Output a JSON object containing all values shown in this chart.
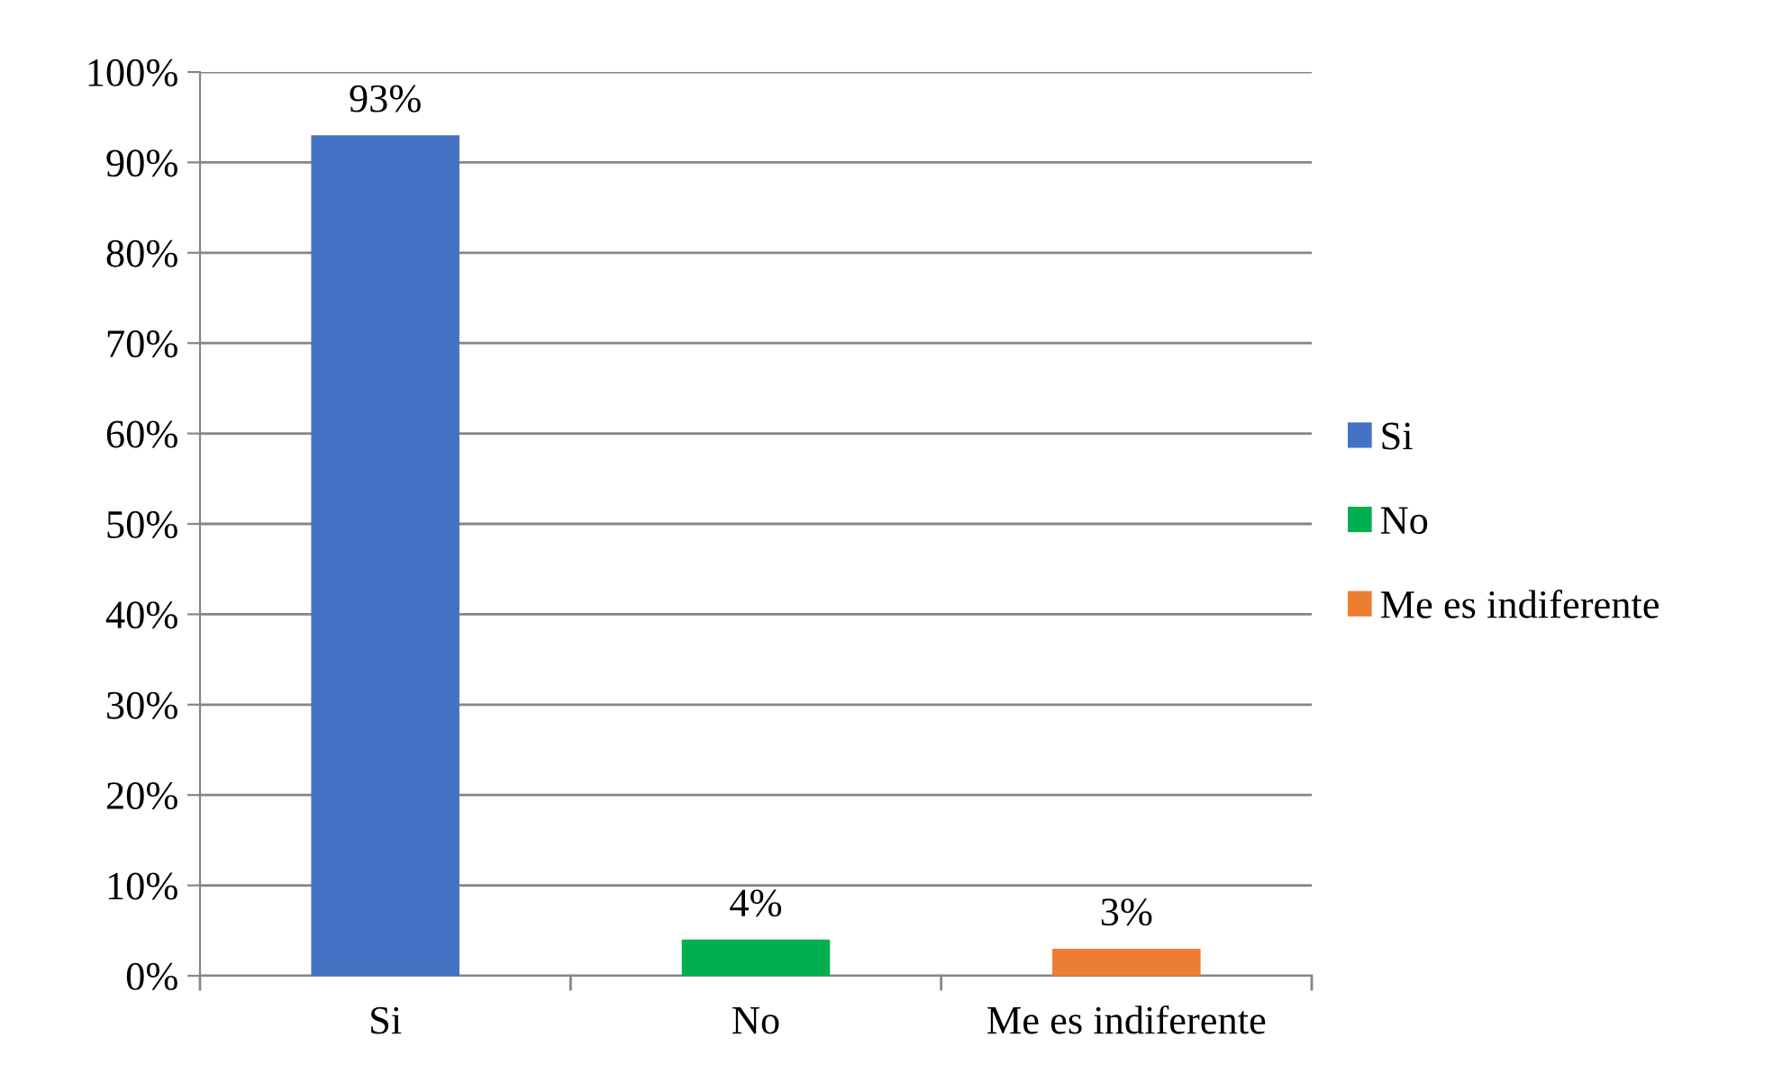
{
  "chart_data": {
    "type": "bar",
    "categories": [
      "Si",
      "No",
      "Me es indiferente"
    ],
    "series": [
      {
        "name": "Si",
        "color": "#4472c4",
        "values": [
          93,
          null,
          null
        ],
        "value_labels": [
          "93%",
          null,
          null
        ]
      },
      {
        "name": "No",
        "color": "#00b050",
        "values": [
          null,
          4,
          null
        ],
        "value_labels": [
          null,
          "4%",
          null
        ]
      },
      {
        "name": "Me es indiferente",
        "color": "#ed7d31",
        "values": [
          null,
          null,
          3
        ],
        "value_labels": [
          null,
          null,
          "3%"
        ]
      }
    ],
    "ylim": [
      0,
      100
    ],
    "yticks": [
      {
        "value": 0,
        "label": "0%"
      },
      {
        "value": 10,
        "label": "10%"
      },
      {
        "value": 20,
        "label": "20%"
      },
      {
        "value": 30,
        "label": "30%"
      },
      {
        "value": 40,
        "label": "40%"
      },
      {
        "value": 50,
        "label": "50%"
      },
      {
        "value": 60,
        "label": "60%"
      },
      {
        "value": 70,
        "label": "70%"
      },
      {
        "value": 80,
        "label": "80%"
      },
      {
        "value": 90,
        "label": "90%"
      },
      {
        "value": 100,
        "label": "100%"
      }
    ],
    "grid": "y",
    "legend": "right"
  }
}
